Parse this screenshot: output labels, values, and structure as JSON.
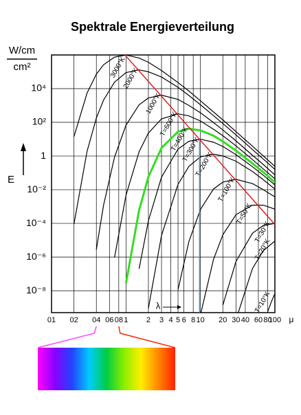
{
  "chart_data": {
    "type": "line",
    "title": "Spektrale Energieverteilung",
    "y_label": "E",
    "y_unit_top": "W/cm",
    "y_unit_bottom": "cm²",
    "x_label": "λ",
    "x_unit": "μ",
    "xscale": "log",
    "yscale": "log",
    "grid": true,
    "xlim": [
      0.1,
      100
    ],
    "ylim": [
      5e-10,
      1000000
    ],
    "xticks": [
      {
        "value": 0.1,
        "label": "01"
      },
      {
        "value": 0.2,
        "label": "02"
      },
      {
        "value": 0.4,
        "label": "04"
      },
      {
        "value": 0.6,
        "label": "06"
      },
      {
        "value": 0.8,
        "label": "08"
      },
      1,
      2,
      3,
      4,
      5,
      6,
      8,
      10,
      20,
      30,
      40,
      60,
      80,
      100
    ],
    "yticks": [
      {
        "value": 1e-08,
        "label": "10⁻⁸"
      },
      {
        "value": 1e-06,
        "label": "10⁻⁶"
      },
      {
        "value": 0.0001,
        "label": "10⁻⁴"
      },
      {
        "value": 0.01,
        "label": "10⁻²"
      },
      1,
      {
        "value": 100,
        "label": "10²"
      },
      {
        "value": 10000,
        "label": "10⁴"
      }
    ],
    "series": [
      {
        "name": "3000°K",
        "color": "#000000",
        "x": [
          0.2,
          0.3,
          0.4,
          0.5,
          0.7,
          1,
          1.5,
          2,
          3,
          5,
          7,
          10,
          15,
          20,
          30,
          50,
          70,
          100
        ],
        "values": [
          14,
          5500,
          72000,
          260000,
          750000,
          990000,
          660000,
          370000,
          120000,
          23000,
          7200,
          1900,
          410,
          140,
          28,
          3.8,
          1.0,
          0.24
        ]
      },
      {
        "name": "2000°K",
        "color": "#000000",
        "x": [
          0.2,
          0.3,
          0.4,
          0.5,
          0.7,
          1,
          1.5,
          2,
          3,
          5,
          7,
          10,
          15,
          20,
          30,
          50,
          70,
          100
        ],
        "values": [
          8.9e-05,
          1.9,
          180,
          2100,
          24000,
          89000,
          130000,
          100000,
          49000,
          12000,
          3900,
          1100,
          250,
          85,
          18,
          2.4,
          0.65,
          0.16
        ]
      },
      {
        "name": "1000°K",
        "color": "#000000",
        "x": [
          0.4,
          0.5,
          0.7,
          1,
          1.5,
          2,
          3,
          5,
          7,
          10,
          15,
          20,
          30,
          50,
          70,
          100
        ],
        "values": [
          2.8e-06,
          0.0012,
          0.84,
          67,
          1100,
          2800,
          4100,
          2300,
          1000,
          370,
          97,
          35,
          7.9,
          1.1,
          0.31,
          0.076
        ]
      },
      {
        "name": "T=600°K",
        "color": "#000000",
        "x": [
          0.7,
          1,
          1.5,
          2,
          3,
          5,
          7,
          10,
          15,
          20,
          30,
          50,
          70,
          100
        ],
        "values": [
          9.3e-07,
          0.0046,
          1.8,
          23,
          160,
          320,
          240,
          120,
          39,
          16,
          4.0,
          0.61,
          0.17,
          0.044
        ]
      },
      {
        "name": "T=400°K",
        "color": "#33dd22",
        "x": [
          1,
          1.5,
          2,
          3,
          5,
          7,
          10,
          15,
          20,
          30,
          50,
          70,
          100
        ],
        "values": [
          2.8e-08,
          0.0006,
          0.057,
          3.0,
          28,
          42,
          33,
          16,
          7.3,
          2.1,
          0.36,
          0.11,
          0.027
        ]
      },
      {
        "name": "T=300°K",
        "color": "#000000",
        "x": [
          1.5,
          2,
          3,
          5,
          7,
          10,
          15,
          20,
          30,
          50,
          70,
          100
        ],
        "values": [
          2e-07,
          0.00014,
          0.055,
          2.6,
          7.5,
          9.9,
          6.6,
          3.7,
          1.2,
          0.23,
          0.072,
          0.019
        ]
      },
      {
        "name": "T=200°K",
        "color": "#000000",
        "x": [
          2,
          3,
          5,
          7,
          10,
          15,
          20,
          30,
          50,
          70,
          100
        ],
        "values": [
          8.9e-10,
          1.9e-05,
          0.021,
          0.24,
          0.89,
          1.3,
          1.0,
          0.49,
          0.12,
          0.039,
          0.011
        ]
      },
      {
        "name": "T=100°K",
        "color": "#000000",
        "x": [
          5,
          7,
          10,
          15,
          20,
          30,
          50,
          70,
          100
        ],
        "values": [
          1.2e-08,
          8.4e-06,
          0.00067,
          0.011,
          0.028,
          0.041,
          0.023,
          0.01,
          0.0037
        ]
      },
      {
        "name": "T=50°K",
        "color": "#000000",
        "x": [
          10,
          15,
          20,
          30,
          50,
          70,
          100
        ],
        "values": [
          3.7e-10,
          7.3e-07,
          2.1e-05,
          0.00033,
          0.0012,
          0.0012,
          0.0007
        ]
      },
      {
        "name": "T=30°K",
        "color": "#000000",
        "x": [
          20,
          30,
          50,
          70,
          100
        ],
        "values": [
          1.4e-09,
          5.5e-07,
          2.6e-05,
          7.5e-05,
          9.9e-05
        ]
      },
      {
        "name": "T=20°K",
        "color": "#000000",
        "x": [
          30,
          50,
          70,
          100
        ],
        "values": [
          1.9e-10,
          2.1e-07,
          2.4e-06,
          8.9e-06
        ]
      },
      {
        "name": "T=10°K",
        "color": "#000000",
        "x": [
          80,
          90,
          100
        ],
        "values": [
          5.6e-10,
          2.3e-09,
          6.7e-09
        ]
      }
    ],
    "wien_line": {
      "color": "#dd2020",
      "x": [
        0.97,
        100
      ],
      "y": [
        1000000,
        8.5e-05
      ]
    },
    "marker_line": {
      "color": "#3399ff",
      "x": 9.7
    },
    "spectrum": {
      "range": [
        0.4,
        0.8
      ],
      "colors": [
        "#ff00ff",
        "#8800ff",
        "#2244ff",
        "#00ccff",
        "#00cc44",
        "#88ee00",
        "#ffee00",
        "#ff8800",
        "#ff2200"
      ]
    }
  }
}
